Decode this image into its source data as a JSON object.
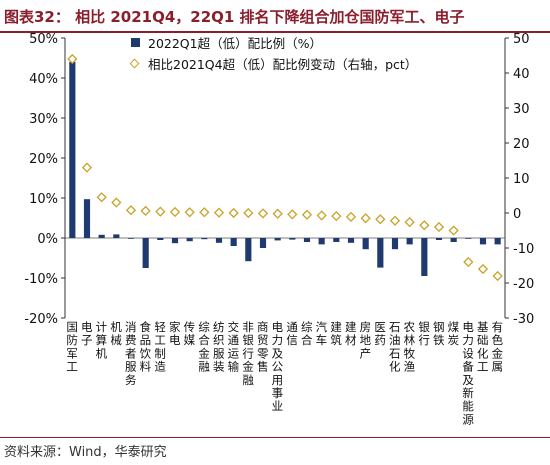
{
  "title": "图表32：  相比 2021Q4，22Q1 排名下降组合加仓国防军工、电子",
  "source": "资料来源：Wind，华泰研究",
  "colors": {
    "bar": "#1f3a6e",
    "diamond": "#c9a227",
    "accent": "#8b1e2d"
  },
  "chart_data": {
    "type": "bar",
    "categories": [
      "国防军工",
      "电子",
      "计算机",
      "机械",
      "消费者服务",
      "食品饮料",
      "轻工制造",
      "家电",
      "传媒",
      "综合金融",
      "纺织服装",
      "交通运输",
      "非银行金融",
      "商贸零售",
      "电力及公用事业",
      "通信",
      "综合",
      "汽车",
      "建筑",
      "建材",
      "房地产",
      "医药",
      "石油石化",
      "农林牧渔",
      "银行",
      "钢铁",
      "煤炭",
      "电力设备及新能源",
      "基础化工",
      "有色金属"
    ],
    "series": [
      {
        "name": "2022Q1超（低）配比例（%）",
        "axis": "left",
        "values": [
          44,
          9.7,
          0.8,
          0.9,
          -0.2,
          -7.5,
          -0.5,
          -1.3,
          -0.8,
          -0.3,
          -1.2,
          -2.0,
          -5.8,
          -2.5,
          -0.6,
          -0.4,
          -1.0,
          -1.6,
          -1.0,
          -1.2,
          -2.8,
          -7.4,
          -2.8,
          -1.6,
          -9.5,
          -0.5,
          -1.0,
          -0.2,
          -1.6,
          -1.6
        ]
      },
      {
        "name": "相比2021Q4超（低）配比例变动（右轴，pct）",
        "axis": "right",
        "values": [
          44,
          13,
          4.5,
          3,
          0.8,
          0.6,
          0.4,
          0.3,
          0.2,
          0.2,
          0.1,
          0,
          0,
          -0.1,
          -0.2,
          -0.4,
          -0.5,
          -0.7,
          -0.9,
          -1.1,
          -1.5,
          -1.8,
          -2.2,
          -2.6,
          -3.5,
          -4.0,
          -5.0,
          -14,
          -16,
          -18
        ]
      }
    ],
    "ylim_left": [
      -20,
      50
    ],
    "ylim_right": [
      -30,
      50
    ],
    "yticks_left": [
      "-20%",
      "-10%",
      "0%",
      "10%",
      "20%",
      "30%",
      "40%",
      "50%"
    ],
    "yticks_right": [
      "-30",
      "-20",
      "-10",
      "0",
      "10",
      "20",
      "30",
      "40",
      "50"
    ],
    "legend": [
      "2022Q1超（低）配比例（%）",
      "相比2021Q4超（低）配比例变动（右轴，pct）"
    ],
    "legend_position": "top-left",
    "grid": false
  }
}
